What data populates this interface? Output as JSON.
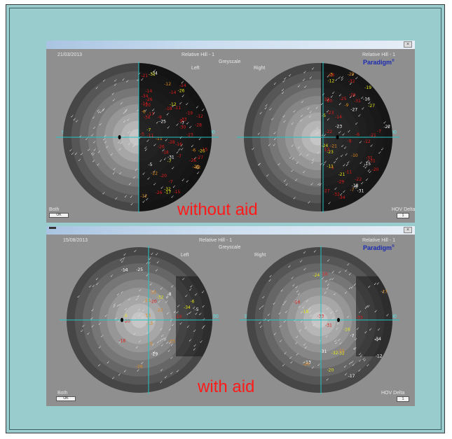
{
  "panels": [
    {
      "id": "top",
      "date": "21/03/2013",
      "test_label": "Relative Hill - 1",
      "greyscale_label": "Greyscale",
      "left_label": "Left",
      "right_label": "Right",
      "right_test_label": "Relative Hill - 1",
      "brand": "Paradigm",
      "brand_mark": "®",
      "both_label": "Both",
      "both_button": "OK",
      "hov_label": "HOV Delta",
      "hov_button": "1",
      "caption": "without aid",
      "caption_color": "#ff1a1a",
      "left_field_axis_left": "90",
      "left_field_axis_right": "90",
      "right_field_axis_left": "90",
      "right_field_axis_right": "90"
    },
    {
      "id": "bottom",
      "date": "15/08/2013",
      "test_label": "Relative Hill - 1",
      "greyscale_label": "Greyscale",
      "left_label": "Left",
      "right_label": "Right",
      "right_test_label": "Relative Hill - 1",
      "brand": "Paradigm",
      "brand_mark": "®",
      "both_label": "Both",
      "both_button": "OK",
      "hov_label": "HOV Delta",
      "hov_button": "1",
      "caption": "with aid",
      "caption_color": "#ff1a1a",
      "left_field_axis_left": "90",
      "left_field_axis_right": "90",
      "right_field_axis_left": "90",
      "right_field_axis_right": "90"
    }
  ],
  "colors": {
    "background": "#99cccc",
    "panel": "#8f8f8f",
    "crosshair": "#27c4c4",
    "deficit_red": "#e21b1b",
    "deficit_orange": "#e38b1a",
    "deficit_yellow": "#e6e61a",
    "brand_blue": "#1b2bb0"
  }
}
